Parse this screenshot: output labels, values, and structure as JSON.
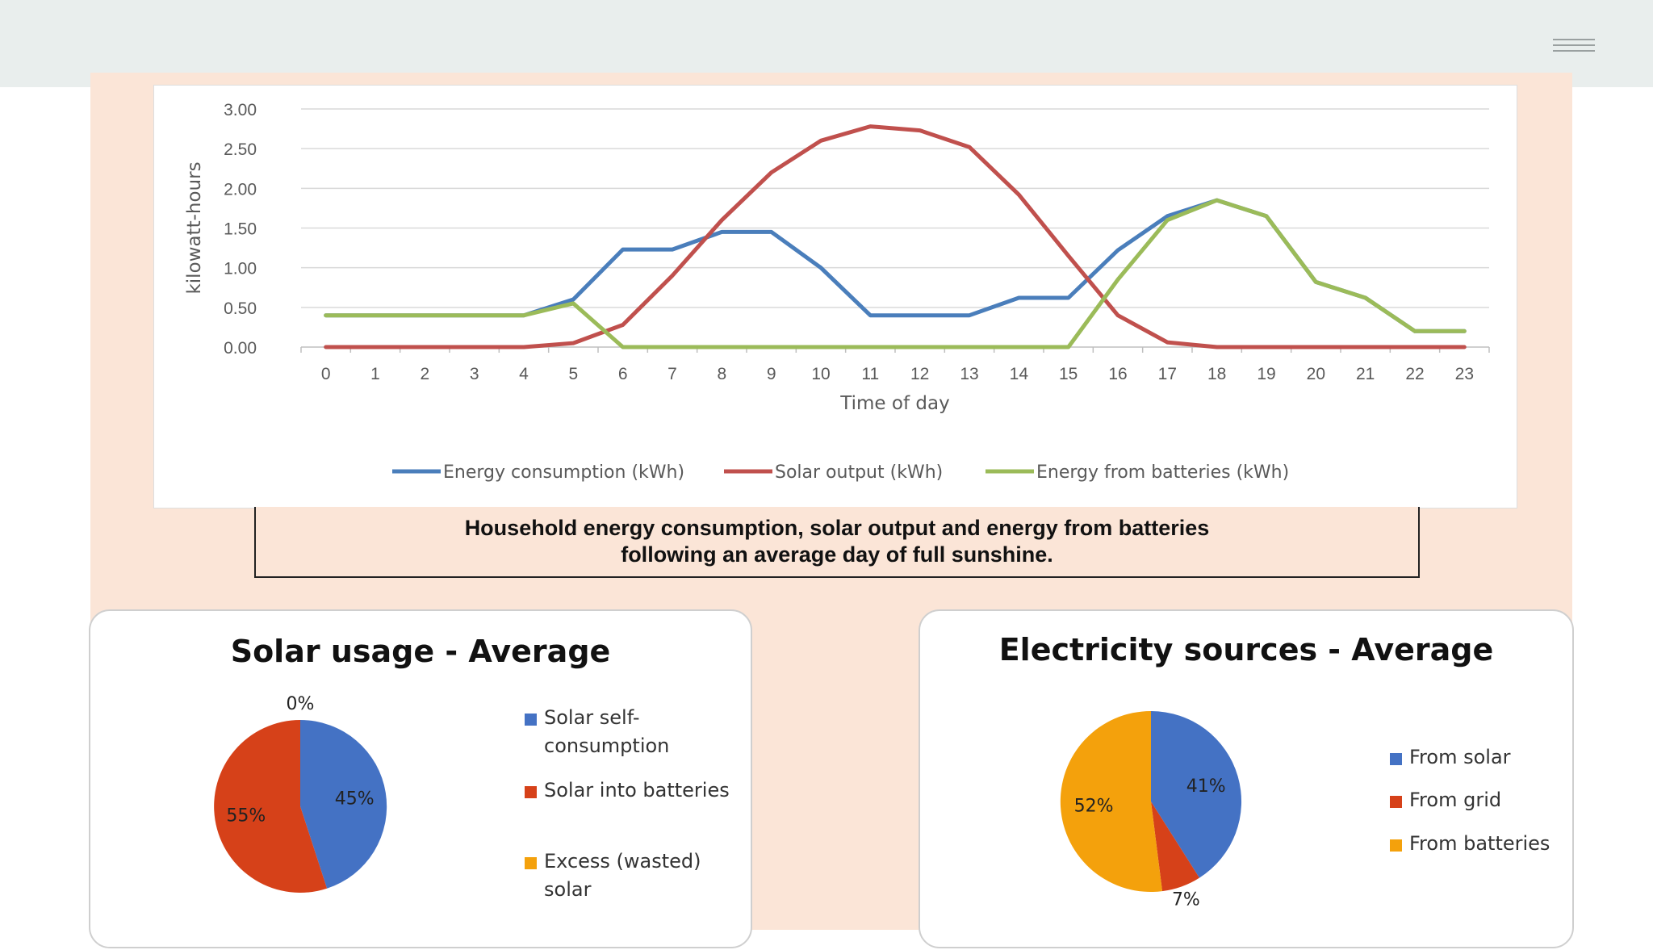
{
  "chart_data": [
    {
      "type": "line",
      "x": [
        0,
        1,
        2,
        3,
        4,
        5,
        6,
        7,
        8,
        9,
        10,
        11,
        12,
        13,
        14,
        15,
        16,
        17,
        18,
        19,
        20,
        21,
        22,
        23
      ],
      "series": [
        {
          "name": "Energy consumption (kWh)",
          "color": "#4a7ebb",
          "values": [
            0.4,
            0.4,
            0.4,
            0.4,
            0.4,
            0.6,
            1.23,
            1.23,
            1.45,
            1.45,
            1.0,
            0.4,
            0.4,
            0.4,
            0.62,
            0.62,
            1.22,
            1.65,
            1.85,
            1.65,
            0.82,
            0.62,
            0.2,
            0.2
          ]
        },
        {
          "name": "Solar output (kWh)",
          "color": "#c0504d",
          "values": [
            0,
            0,
            0,
            0,
            0,
            0.05,
            0.28,
            0.9,
            1.6,
            2.2,
            2.6,
            2.78,
            2.73,
            2.52,
            1.92,
            1.15,
            0.4,
            0.06,
            0,
            0,
            0,
            0,
            0,
            0
          ]
        },
        {
          "name": "Energy from batteries (kWh)",
          "color": "#9bbb59",
          "values": [
            0.4,
            0.4,
            0.4,
            0.4,
            0.4,
            0.55,
            0,
            0,
            0,
            0,
            0,
            0,
            0,
            0,
            0,
            0,
            0.85,
            1.6,
            1.85,
            1.65,
            0.82,
            0.62,
            0.2,
            0.2
          ]
        }
      ],
      "yticks": [
        "0.00",
        "0.50",
        "1.00",
        "1.50",
        "2.00",
        "2.50",
        "3.00"
      ],
      "ylim": [
        0,
        3
      ],
      "xlabel": "Time of day",
      "ylabel": "kilowatt-hours",
      "grid": true,
      "legend": "bottom"
    },
    {
      "type": "pie",
      "title": "Solar usage - Average",
      "slices": [
        {
          "name": "Solar self-consumption",
          "name_lines": [
            "Solar self-",
            "consumption"
          ],
          "value": 45,
          "label": "45%",
          "color": "#4472c4"
        },
        {
          "name": "Solar into batteries",
          "name_lines": [
            "Solar into batteries"
          ],
          "value": 55,
          "label": "55%",
          "color": "#d64119"
        },
        {
          "name": "Excess (wasted) solar",
          "name_lines": [
            "Excess (wasted)",
            "solar"
          ],
          "value": 0,
          "label": "0%",
          "color": "#f4a10c"
        }
      ],
      "legend": "right"
    },
    {
      "type": "pie",
      "title": "Electricity sources - Average",
      "slices": [
        {
          "name": "From solar",
          "name_lines": [
            "From solar"
          ],
          "value": 41,
          "label": "41%",
          "color": "#4472c4"
        },
        {
          "name": "From grid",
          "name_lines": [
            "From grid"
          ],
          "value": 7,
          "label": "7%",
          "color": "#d64119"
        },
        {
          "name": "From batteries",
          "name_lines": [
            "From batteries"
          ],
          "value": 52,
          "label": "52%",
          "color": "#f4a10c"
        }
      ],
      "legend": "right"
    }
  ],
  "caption": {
    "line1": "Household energy consumption, solar output and energy from batteries",
    "line2": "following an average day of full sunshine."
  }
}
